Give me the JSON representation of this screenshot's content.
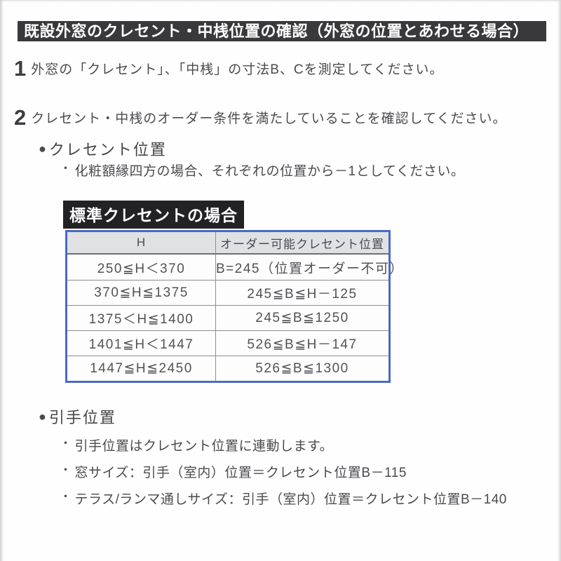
{
  "title_bar": "既設外窓のクレセント・中桟位置の確認（外窓の位置とあわせる場合）",
  "steps": [
    {
      "number": "1",
      "text": "外窓の「クレセント」、「中桟」の寸法B、Cを測定してください。"
    },
    {
      "number": "2",
      "text": "クレセント・中桟のオーダー条件を満たしていることを確認してください。"
    }
  ],
  "crescent_section": {
    "heading": "クレセント位置",
    "note": "化粧額縁四方の場合、それぞれの位置から－1としてください。",
    "table_label": "標準クレセントの場合",
    "table": {
      "headers": [
        "H",
        "オーダー可能クレセント位置"
      ],
      "rows": [
        [
          "250≦H＜370",
          "B=245（位置オーダー不可）"
        ],
        [
          "370≦H≦1375",
          "245≦B≦H－125"
        ],
        [
          "1375＜H≦1400",
          "245≦B≦1250"
        ],
        [
          "1401≦H＜1447",
          "526≦B≦H－147"
        ],
        [
          "1447≦H≦2450",
          "526≦B≦1300"
        ]
      ]
    }
  },
  "pull_section": {
    "heading": "引手位置",
    "notes": [
      "引手位置はクレセント位置に連動します。",
      "窓サイズ：引手（室内）位置＝クレセント位置B－115",
      "テラス/ランマ通しサイズ：引手（室内）位置＝クレセント位置B－140"
    ]
  },
  "icons": {
    "section_bullet": "●",
    "item_bullet": "・"
  },
  "colors": {
    "title_bar_bg": "#39393c",
    "table_border": "#4b69c6",
    "table_header_bg": "#dfe1e3",
    "label_bg": "#222225",
    "text": "#4b4b4f"
  }
}
